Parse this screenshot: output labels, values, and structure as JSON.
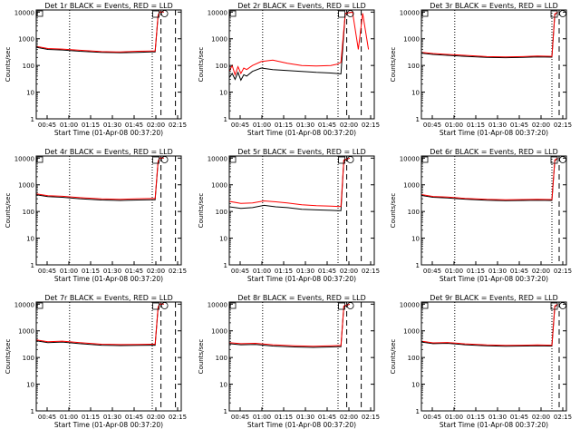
{
  "figure": {
    "xlabel": "Start Time (01-Apr-08 00:37:20)",
    "ylabel": "Counts/sec",
    "colors": {
      "events": "#000000",
      "lld": "#ff0000"
    }
  },
  "chart_data": [
    {
      "type": "line",
      "title": "Det 1r BLACK = Events, RED = LLD",
      "xlabel": "Start Time (01-Apr-08 00:37:20)",
      "ylabel": "Counts/sec",
      "x_unit": "minutes after 00:37:20",
      "xlim": [
        0,
        100
      ],
      "ylim": [
        1,
        12000
      ],
      "yscale": "log",
      "xtick_labels": [
        "00:45",
        "01:00",
        "01:15",
        "01:30",
        "01:45",
        "02:00",
        "02:15"
      ],
      "ytick_labels": [
        "1",
        "10",
        "100",
        "1000",
        "10000"
      ],
      "ytick_values": [
        1,
        10,
        100,
        1000,
        10000
      ],
      "markers": {
        "dotted": [
          23,
          80
        ],
        "dashed": [
          86,
          96
        ]
      },
      "series": [
        {
          "color": "#000000",
          "x": [
            0,
            8,
            18,
            30,
            45,
            58,
            70,
            79,
            82,
            84,
            85,
            88
          ],
          "y": [
            480,
            400,
            380,
            340,
            310,
            300,
            310,
            320,
            320,
            7000,
            10000,
            10000
          ]
        },
        {
          "color": "#ff0000",
          "x": [
            0,
            8,
            18,
            30,
            45,
            58,
            70,
            79,
            82,
            84,
            85,
            88
          ],
          "y": [
            520,
            430,
            410,
            370,
            330,
            320,
            340,
            350,
            350,
            7500,
            10000,
            10000
          ]
        }
      ]
    },
    {
      "type": "line",
      "title": "Det 2r BLACK = Events, RED = LLD",
      "xlabel": "Start Time (01-Apr-08 00:37:20)",
      "ylabel": "Counts/sec",
      "x_unit": "minutes after 00:37:20",
      "xlim": [
        0,
        100
      ],
      "ylim": [
        1,
        12000
      ],
      "yscale": "log",
      "xtick_labels": [
        "00:45",
        "01:00",
        "01:15",
        "01:30",
        "01:45",
        "02:00",
        "02:15"
      ],
      "ytick_labels": [
        "1",
        "10",
        "100",
        "1000",
        "10000"
      ],
      "ytick_values": [
        1,
        10,
        100,
        1000,
        10000
      ],
      "markers": {
        "dotted": [
          23,
          75
        ],
        "dashed": [
          81,
          91
        ]
      },
      "series": [
        {
          "color": "#000000",
          "x": [
            0,
            2,
            4,
            6,
            8,
            10,
            12,
            16,
            22,
            30,
            40,
            50,
            60,
            70,
            74,
            77,
            80,
            85
          ],
          "y": [
            35,
            50,
            30,
            55,
            28,
            45,
            40,
            60,
            80,
            70,
            65,
            60,
            55,
            52,
            50,
            48,
            9000,
            10000
          ]
        },
        {
          "color": "#ff0000",
          "x": [
            0,
            2,
            4,
            6,
            8,
            10,
            12,
            16,
            22,
            30,
            40,
            50,
            60,
            70,
            74,
            77,
            80,
            85,
            89,
            92,
            96
          ],
          "y": [
            60,
            100,
            45,
            90,
            50,
            80,
            70,
            100,
            140,
            160,
            120,
            100,
            95,
            100,
            110,
            130,
            9000,
            10000,
            400,
            9000,
            400
          ]
        }
      ]
    },
    {
      "type": "line",
      "title": "Det 3r BLACK = Events, RED = LLD",
      "xlabel": "Start Time (01-Apr-08 00:37:20)",
      "ylabel": "Counts/sec",
      "x_unit": "minutes after 00:37:20",
      "xlim": [
        0,
        100
      ],
      "ylim": [
        1,
        12000
      ],
      "yscale": "log",
      "xtick_labels": [
        "00:45",
        "01:00",
        "01:15",
        "01:30",
        "01:45",
        "02:00",
        "02:15"
      ],
      "ytick_labels": [
        "1",
        "10",
        "100",
        "1000",
        "10000"
      ],
      "ytick_values": [
        1,
        10,
        100,
        1000,
        10000
      ],
      "markers": {
        "dotted": [
          23,
          90
        ],
        "dashed": [
          95
        ]
      },
      "series": [
        {
          "color": "#000000",
          "x": [
            0,
            8,
            18,
            30,
            45,
            58,
            70,
            80,
            90,
            92,
            94
          ],
          "y": [
            290,
            260,
            240,
            220,
            200,
            195,
            200,
            210,
            205,
            8000,
            10000
          ]
        },
        {
          "color": "#ff0000",
          "x": [
            0,
            8,
            18,
            30,
            45,
            58,
            70,
            80,
            90,
            92,
            94
          ],
          "y": [
            310,
            280,
            260,
            240,
            215,
            210,
            215,
            225,
            220,
            8500,
            10000
          ]
        }
      ]
    },
    {
      "type": "line",
      "title": "Det 4r BLACK = Events, RED = LLD",
      "xlabel": "Start Time (01-Apr-08 00:37:20)",
      "ylabel": "Counts/sec",
      "x_unit": "minutes after 00:37:20",
      "xlim": [
        0,
        100
      ],
      "ylim": [
        1,
        12000
      ],
      "yscale": "log",
      "xtick_labels": [
        "00:45",
        "01:00",
        "01:15",
        "01:30",
        "01:45",
        "02:00",
        "02:15"
      ],
      "ytick_labels": [
        "1",
        "10",
        "100",
        "1000",
        "10000"
      ],
      "ytick_values": [
        1,
        10,
        100,
        1000,
        10000
      ],
      "markers": {
        "dotted": [
          23,
          80
        ],
        "dashed": [
          86,
          96
        ]
      },
      "series": [
        {
          "color": "#000000",
          "x": [
            0,
            8,
            18,
            30,
            45,
            58,
            70,
            79,
            82,
            84,
            85,
            88
          ],
          "y": [
            420,
            360,
            340,
            300,
            270,
            260,
            270,
            275,
            275,
            7000,
            10000,
            10000
          ]
        },
        {
          "color": "#ff0000",
          "x": [
            0,
            8,
            18,
            30,
            45,
            58,
            70,
            79,
            82,
            84,
            85,
            88
          ],
          "y": [
            460,
            390,
            370,
            330,
            295,
            285,
            300,
            305,
            305,
            7500,
            10000,
            10000
          ]
        }
      ]
    },
    {
      "type": "line",
      "title": "Det 5r BLACK = Events, RED = LLD",
      "xlabel": "Start Time (01-Apr-08 00:37:20)",
      "ylabel": "Counts/sec",
      "x_unit": "minutes after 00:37:20",
      "xlim": [
        0,
        100
      ],
      "ylim": [
        1,
        12000
      ],
      "yscale": "log",
      "xtick_labels": [
        "00:45",
        "01:00",
        "01:15",
        "01:30",
        "01:45",
        "02:00",
        "02:15"
      ],
      "ytick_labels": [
        "1",
        "10",
        "100",
        "1000",
        "10000"
      ],
      "ytick_values": [
        1,
        10,
        100,
        1000,
        10000
      ],
      "markers": {
        "dotted": [
          23,
          75
        ],
        "dashed": [
          81,
          91
        ]
      },
      "series": [
        {
          "color": "#000000",
          "x": [
            0,
            8,
            16,
            24,
            32,
            40,
            50,
            60,
            70,
            75,
            77,
            79,
            83
          ],
          "y": [
            150,
            130,
            140,
            170,
            150,
            140,
            120,
            115,
            110,
            108,
            108,
            8000,
            10000
          ]
        },
        {
          "color": "#ff0000",
          "x": [
            0,
            8,
            16,
            24,
            32,
            40,
            50,
            60,
            70,
            75,
            77,
            79,
            83
          ],
          "y": [
            240,
            200,
            210,
            250,
            230,
            210,
            180,
            165,
            160,
            155,
            155,
            8500,
            10000
          ]
        }
      ]
    },
    {
      "type": "line",
      "title": "Det 6r BLACK = Events, RED = LLD",
      "xlabel": "Start Time (01-Apr-08 00:37:20)",
      "ylabel": "Counts/sec",
      "x_unit": "minutes after 00:37:20",
      "xlim": [
        0,
        100
      ],
      "ylim": [
        1,
        12000
      ],
      "yscale": "log",
      "xtick_labels": [
        "00:45",
        "01:00",
        "01:15",
        "01:30",
        "01:45",
        "02:00",
        "02:15"
      ],
      "ytick_labels": [
        "1",
        "10",
        "100",
        "1000",
        "10000"
      ],
      "ytick_values": [
        1,
        10,
        100,
        1000,
        10000
      ],
      "markers": {
        "dotted": [
          23,
          90
        ],
        "dashed": [
          95
        ]
      },
      "series": [
        {
          "color": "#000000",
          "x": [
            0,
            8,
            18,
            30,
            45,
            58,
            70,
            80,
            90,
            92,
            94
          ],
          "y": [
            400,
            340,
            320,
            290,
            265,
            255,
            260,
            265,
            260,
            8000,
            10000
          ]
        },
        {
          "color": "#ff0000",
          "x": [
            0,
            8,
            18,
            30,
            45,
            58,
            70,
            80,
            90,
            92,
            94
          ],
          "y": [
            430,
            365,
            345,
            310,
            285,
            275,
            280,
            285,
            280,
            8500,
            10000
          ]
        }
      ]
    },
    {
      "type": "line",
      "title": "Det 7r BLACK = Events, RED = LLD",
      "xlabel": "Start Time (01-Apr-08 00:37:20)",
      "ylabel": "Counts/sec",
      "x_unit": "minutes after 00:37:20",
      "xlim": [
        0,
        100
      ],
      "ylim": [
        1,
        12000
      ],
      "yscale": "log",
      "xtick_labels": [
        "00:45",
        "01:00",
        "01:15",
        "01:30",
        "01:45",
        "02:00",
        "02:15"
      ],
      "ytick_labels": [
        "1",
        "10",
        "100",
        "1000",
        "10000"
      ],
      "ytick_values": [
        1,
        10,
        100,
        1000,
        10000
      ],
      "markers": {
        "dotted": [
          23,
          80
        ],
        "dashed": [
          86,
          96
        ]
      },
      "series": [
        {
          "color": "#000000",
          "x": [
            0,
            8,
            18,
            30,
            45,
            58,
            70,
            79,
            82,
            84,
            85,
            88
          ],
          "y": [
            420,
            360,
            380,
            330,
            290,
            280,
            285,
            290,
            290,
            7000,
            10000,
            10000
          ]
        },
        {
          "color": "#ff0000",
          "x": [
            0,
            8,
            18,
            30,
            45,
            58,
            70,
            79,
            82,
            84,
            85,
            88
          ],
          "y": [
            460,
            390,
            410,
            360,
            315,
            305,
            310,
            315,
            315,
            7500,
            10000,
            10000
          ]
        }
      ]
    },
    {
      "type": "line",
      "title": "Det 8r BLACK = Events, RED = LLD",
      "xlabel": "Start Time (01-Apr-08 00:37:20)",
      "ylabel": "Counts/sec",
      "x_unit": "minutes after 00:37:20",
      "xlim": [
        0,
        100
      ],
      "ylim": [
        1,
        12000
      ],
      "yscale": "log",
      "xtick_labels": [
        "00:45",
        "01:00",
        "01:15",
        "01:30",
        "01:45",
        "02:00",
        "02:15"
      ],
      "ytick_labels": [
        "1",
        "10",
        "100",
        "1000",
        "10000"
      ],
      "ytick_values": [
        1,
        10,
        100,
        1000,
        10000
      ],
      "markers": {
        "dotted": [
          23,
          75
        ],
        "dashed": [
          81,
          91
        ]
      },
      "series": [
        {
          "color": "#000000",
          "x": [
            0,
            8,
            18,
            30,
            45,
            58,
            70,
            75,
            77,
            79,
            83
          ],
          "y": [
            330,
            300,
            310,
            270,
            250,
            240,
            250,
            255,
            255,
            8000,
            10000
          ]
        },
        {
          "color": "#ff0000",
          "x": [
            0,
            8,
            18,
            30,
            45,
            58,
            70,
            75,
            77,
            79,
            83
          ],
          "y": [
            360,
            330,
            340,
            300,
            275,
            265,
            275,
            280,
            280,
            8500,
            10000
          ]
        }
      ]
    },
    {
      "type": "line",
      "title": "Det 9r BLACK = Events, RED = LLD",
      "xlabel": "Start Time (01-Apr-08 00:37:20)",
      "ylabel": "Counts/sec",
      "x_unit": "minutes after 00:37:20",
      "xlim": [
        0,
        100
      ],
      "ylim": [
        1,
        12000
      ],
      "yscale": "log",
      "xtick_labels": [
        "00:45",
        "01:00",
        "01:15",
        "01:30",
        "01:45",
        "02:00",
        "02:15"
      ],
      "ytick_labels": [
        "1",
        "10",
        "100",
        "1000",
        "10000"
      ],
      "ytick_values": [
        1,
        10,
        100,
        1000,
        10000
      ],
      "markers": {
        "dotted": [
          23,
          90
        ],
        "dashed": [
          95
        ]
      },
      "series": [
        {
          "color": "#000000",
          "x": [
            0,
            8,
            18,
            30,
            45,
            58,
            70,
            80,
            90,
            92,
            94
          ],
          "y": [
            380,
            330,
            340,
            300,
            275,
            265,
            270,
            275,
            270,
            8000,
            10000
          ]
        },
        {
          "color": "#ff0000",
          "x": [
            0,
            8,
            18,
            30,
            45,
            58,
            70,
            80,
            90,
            92,
            94
          ],
          "y": [
            410,
            355,
            365,
            325,
            295,
            285,
            290,
            295,
            290,
            8500,
            10000
          ]
        }
      ]
    }
  ]
}
